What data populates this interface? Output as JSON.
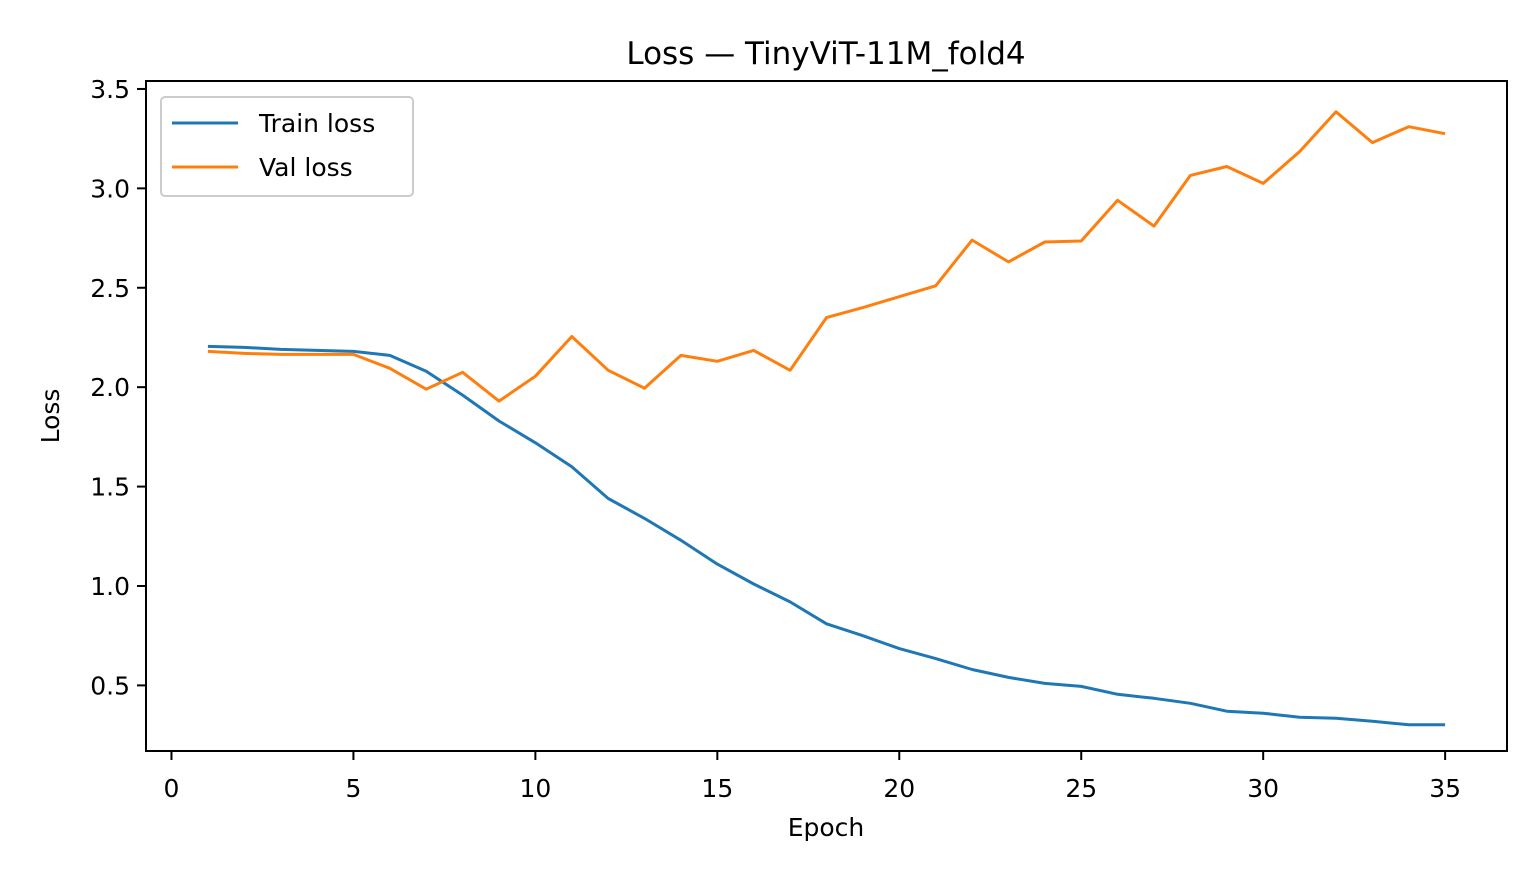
{
  "chart_data": {
    "type": "line",
    "title": "Loss — TinyViT-11M_fold4",
    "xlabel": "Epoch",
    "ylabel": "Loss",
    "xlim": [
      -0.7,
      36.7
    ],
    "ylim": [
      0.17,
      3.54
    ],
    "xticks": [
      0,
      5,
      10,
      15,
      20,
      25,
      30,
      35
    ],
    "yticks": [
      0.5,
      1.0,
      1.5,
      2.0,
      2.5,
      3.0,
      3.5
    ],
    "xtick_labels": [
      "0",
      "5",
      "10",
      "15",
      "20",
      "25",
      "30",
      "35"
    ],
    "ytick_labels": [
      "0.5",
      "1.0",
      "1.5",
      "2.0",
      "2.5",
      "3.0",
      "3.5"
    ],
    "grid": false,
    "legend_position": "top-left",
    "x": [
      1,
      2,
      3,
      4,
      5,
      6,
      7,
      8,
      9,
      10,
      11,
      12,
      13,
      14,
      15,
      16,
      17,
      18,
      19,
      20,
      21,
      22,
      23,
      24,
      25,
      26,
      27,
      28,
      29,
      30,
      31,
      32,
      33,
      34,
      35
    ],
    "series": [
      {
        "name": "Train loss",
        "color": "#1f77b4",
        "values": [
          2.205,
          2.2,
          2.19,
          2.185,
          2.18,
          2.16,
          2.08,
          1.96,
          1.83,
          1.72,
          1.6,
          1.44,
          1.34,
          1.23,
          1.11,
          1.01,
          0.92,
          0.81,
          0.75,
          0.685,
          0.635,
          0.58,
          0.54,
          0.51,
          0.495,
          0.455,
          0.435,
          0.41,
          0.37,
          0.36,
          0.34,
          0.335,
          0.32,
          0.302,
          0.302
        ]
      },
      {
        "name": "Val loss",
        "color": "#ff7f0e",
        "values": [
          2.18,
          2.17,
          2.165,
          2.165,
          2.165,
          2.095,
          1.99,
          2.075,
          1.93,
          2.055,
          2.255,
          2.085,
          1.995,
          2.16,
          2.13,
          2.185,
          2.085,
          2.35,
          2.4,
          2.455,
          2.51,
          2.74,
          2.63,
          2.73,
          2.735,
          2.94,
          2.81,
          3.065,
          3.11,
          3.025,
          3.185,
          3.385,
          3.23,
          3.31,
          3.275
        ]
      }
    ]
  }
}
